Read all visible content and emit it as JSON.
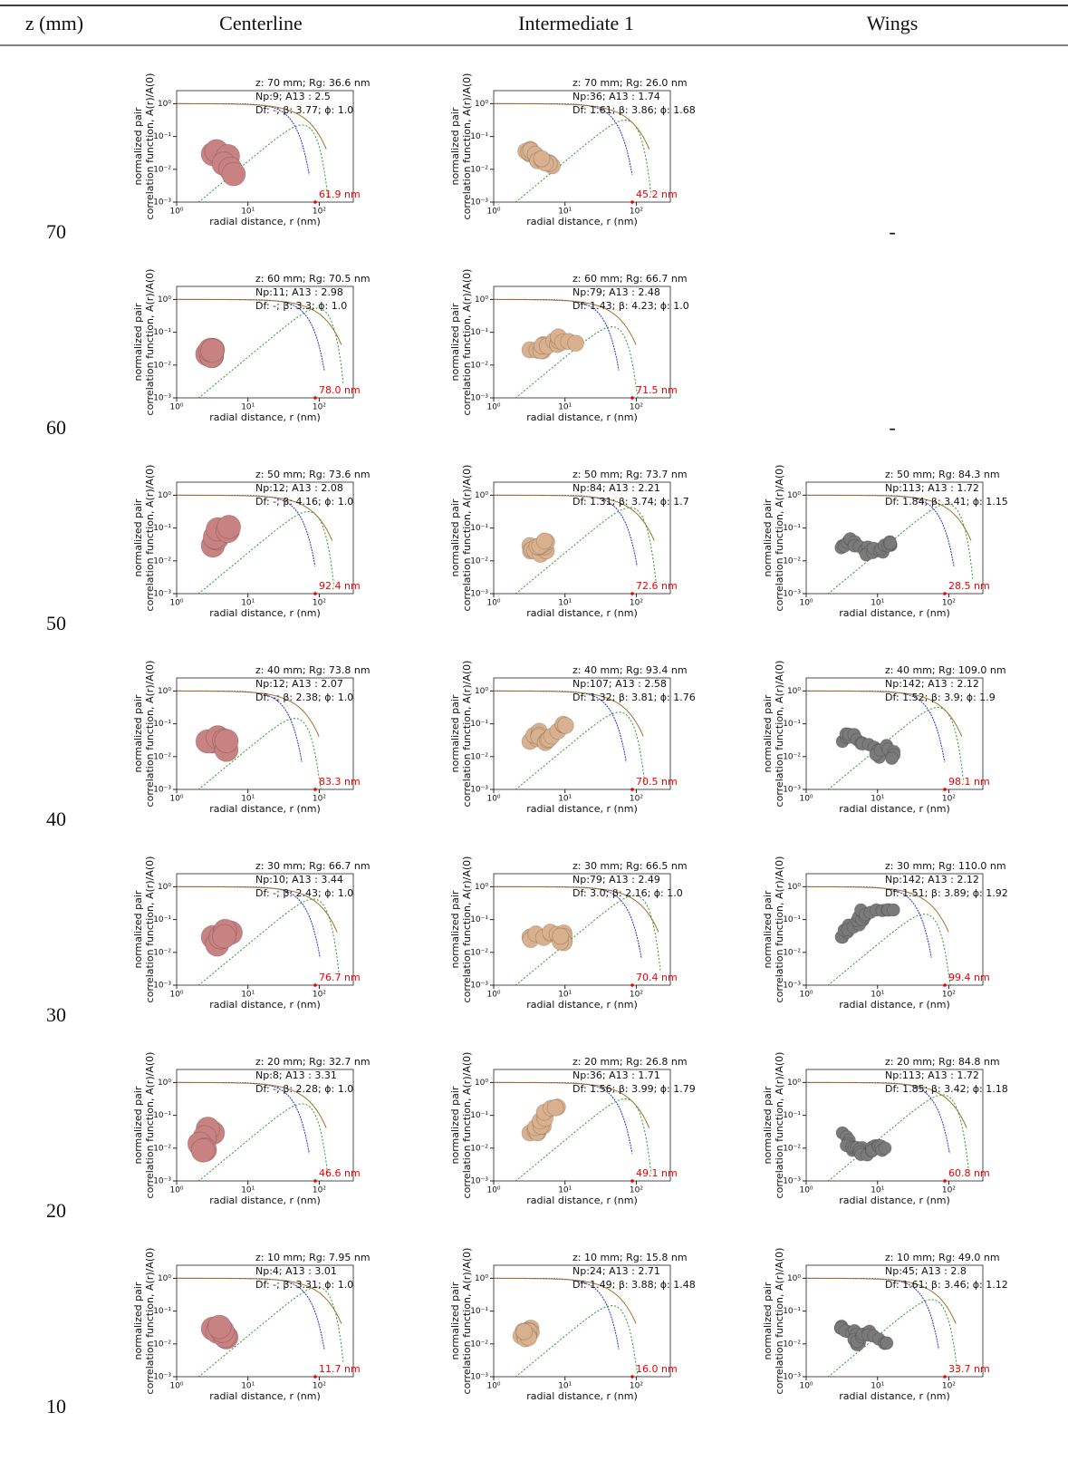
{
  "header": [
    "z (mm)",
    "Centerline",
    "Intermediate 1",
    "Wings"
  ],
  "axis": {
    "xlabel": "radial distance, r (nm)",
    "ylabel_1": "normalized pair",
    "ylabel_2": "correlation function, A(r)/A(0)",
    "xlim": [
      1,
      300
    ],
    "ylim": [
      0.001,
      2.5
    ],
    "xticks": [
      {
        "value": 1,
        "label": "10⁰"
      },
      {
        "value": 10,
        "label": "10¹"
      },
      {
        "value": 100,
        "label": "10²"
      }
    ],
    "yticks": [
      {
        "value": 1,
        "label": "10⁰"
      },
      {
        "value": 0.1,
        "label": "10⁻¹"
      },
      {
        "value": 0.01,
        "label": "10⁻²"
      },
      {
        "value": 0.001,
        "label": "10⁻³"
      }
    ]
  },
  "column_colors": [
    "#c98282",
    "#d9b18e",
    "#7a7a7a"
  ],
  "rows": [
    {
      "z": "70",
      "cells": [
        {
          "lines": [
            "z: 70 mm; Rg: 36.6 nm",
            "Np:9; A13 : 2.5",
            "Df: -; β: 3.77; ϕ: 1.0"
          ],
          "size": "61.9 nm"
        },
        {
          "lines": [
            "z: 70 mm; Rg: 26.0 nm",
            "Np:36; A13 : 1.74",
            "Df: 1.61; β: 3.86; ϕ: 1.68"
          ],
          "size": "45.2 nm"
        },
        "-"
      ]
    },
    {
      "z": "60",
      "cells": [
        {
          "lines": [
            "z: 60 mm; Rg: 70.5 nm",
            "Np:11; A13 : 2.98",
            "Df: -; β: 3.3; ϕ: 1.0"
          ],
          "size": "78.0 nm"
        },
        {
          "lines": [
            "z: 60 mm; Rg: 66.7 nm",
            "Np:79; A13 : 2.48",
            "Df: 1.43; β: 4.23; ϕ: 1.0"
          ],
          "size": "71.5 nm"
        },
        "-"
      ]
    },
    {
      "z": "50",
      "cells": [
        {
          "lines": [
            "z: 50 mm; Rg: 73.6 nm",
            "Np:12; A13 : 2.08",
            "Df: -; β: 4.16; ϕ: 1.0"
          ],
          "size": "92.4 nm"
        },
        {
          "lines": [
            "z: 50 mm; Rg: 73.7 nm",
            "Np:84; A13 : 2.21",
            "Df: 1.31; β: 3.74; ϕ: 1.7"
          ],
          "size": "72.6 nm"
        },
        {
          "lines": [
            "z: 50 mm; Rg: 84.3 nm",
            "Np:113; A13 : 1.72",
            "Df: 1.84; β: 3.41; ϕ: 1.15"
          ],
          "size": "28.5 nm"
        }
      ]
    },
    {
      "z": "40",
      "cells": [
        {
          "lines": [
            "z: 40 mm; Rg: 73.8 nm",
            "Np:12; A13 : 2.07",
            "Df: -; β: 2.38; ϕ: 1.0"
          ],
          "size": "83.3 nm"
        },
        {
          "lines": [
            "z: 40 mm; Rg: 93.4 nm",
            "Np:107; A13 : 2.58",
            "Df: 1.32; β: 3.81; ϕ: 1.76"
          ],
          "size": "70.5 nm"
        },
        {
          "lines": [
            "z: 40 mm; Rg: 109.0 nm",
            "Np:142; A13 : 2.12",
            "Df: 1.52; β: 3.9; ϕ: 1.9"
          ],
          "size": "98.1 nm"
        }
      ]
    },
    {
      "z": "30",
      "cells": [
        {
          "lines": [
            "z: 30 mm; Rg: 66.7 nm",
            "Np:10; A13 : 3.44",
            "Df: -; β: 2.43; ϕ: 1.0"
          ],
          "size": "76.7 nm"
        },
        {
          "lines": [
            "z: 30 mm; Rg: 66.5 nm",
            "Np:79; A13 : 2.49",
            "Df: 3.0; β: 2.16; ϕ: 1.0"
          ],
          "size": "70.4 nm"
        },
        {
          "lines": [
            "z: 30 mm; Rg: 110.0 nm",
            "Np:142; A13 : 2.12",
            "Df: 1.51; β: 3.89; ϕ: 1.92"
          ],
          "size": "99.4 nm"
        }
      ]
    },
    {
      "z": "20",
      "cells": [
        {
          "lines": [
            "z: 20 mm; Rg: 32.7 nm",
            "Np:8; A13 : 3.31",
            "Df: -; β: 2.28; ϕ: 1.0"
          ],
          "size": "46.6 nm"
        },
        {
          "lines": [
            "z: 20 mm; Rg: 26.8 nm",
            "Np:36; A13 : 1.71",
            "Df: 1.56; β: 3.99; ϕ: 1.79"
          ],
          "size": "49.1 nm"
        },
        {
          "lines": [
            "z: 20 mm; Rg: 84.8 nm",
            "Np:113; A13 : 1.72",
            "Df: 1.85; β: 3.42; ϕ: 1.18"
          ],
          "size": "60.8 nm"
        }
      ]
    },
    {
      "z": "10",
      "cells": [
        {
          "lines": [
            "z: 10 mm; Rg: 7.95 nm",
            "Np:4; A13 : 3.01",
            "Df: -; β: 3.31; ϕ: 1.0"
          ],
          "size": "11.7 nm"
        },
        {
          "lines": [
            "z: 10 mm; Rg: 15.8 nm",
            "Np:24; A13 : 2.71",
            "Df: 1.49; β: 3.88; ϕ: 1.48"
          ],
          "size": "16.0 nm"
        },
        {
          "lines": [
            "z: 10 mm; Rg: 49.0 nm",
            "Np:45; A13 : 2.8",
            "Df: 1.61; β: 3.46; ϕ: 1.12"
          ],
          "size": "33.7 nm"
        }
      ]
    }
  ]
}
